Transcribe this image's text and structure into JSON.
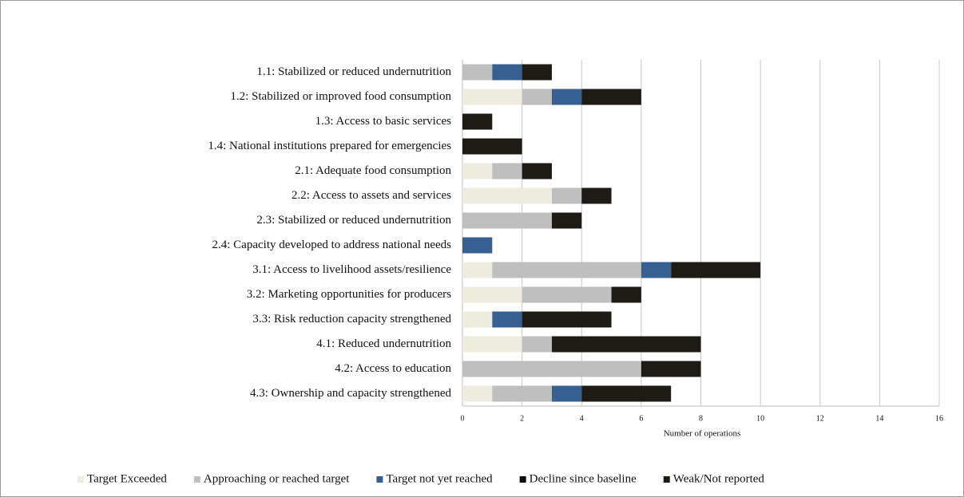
{
  "chart_data": {
    "type": "stacked_barh",
    "xlabel": "Number of operations",
    "categories": [
      "1.1: Stabilized or reduced undernutrition",
      "1.2: Stabilized or improved food consumption",
      "1.3: Access to basic services",
      "1.4: National institutions prepared for emergencies",
      "2.1: Adequate food consumption",
      "2.2: Access to assets and services",
      "2.3: Stabilized or reduced undernutrition",
      "2.4: Capacity developed to address national needs",
      "3.1: Access to livelihood assets/resilience",
      "3.2: Marketing opportunities for producers",
      "3.3: Risk reduction capacity strengthened",
      "4.1: Reduced undernutrition",
      "4.2: Access to education",
      "4.3: Ownership and capacity strengthened"
    ],
    "series": [
      {
        "name": "Target Exceeded",
        "color": "#eeebdf",
        "values": [
          0,
          2,
          0,
          0,
          1,
          3,
          0,
          0,
          1,
          2,
          1,
          2,
          0,
          1
        ]
      },
      {
        "name": "Approaching or reached target",
        "color": "#bfbfbf",
        "values": [
          1,
          1,
          0,
          0,
          1,
          1,
          3,
          0,
          5,
          3,
          0,
          1,
          6,
          2
        ]
      },
      {
        "name": "Target not yet reached",
        "color": "#376092",
        "values": [
          1,
          1,
          0,
          0,
          0,
          0,
          0,
          1,
          1,
          0,
          1,
          0,
          0,
          1
        ]
      },
      {
        "name": "Decline since baseline",
        "color": "#0d0d0d",
        "values": [
          0,
          0,
          0,
          0,
          0,
          0,
          0,
          0,
          0,
          0,
          0,
          0,
          0,
          0
        ]
      },
      {
        "name": "Weak/Not reported",
        "color": "#1d1b14",
        "values": [
          1,
          2,
          1,
          2,
          1,
          1,
          1,
          0,
          3,
          1,
          3,
          5,
          2,
          3
        ]
      }
    ],
    "xlim": [
      0,
      16
    ],
    "xticks": [
      0,
      2,
      4,
      6,
      8,
      10,
      12,
      14,
      16
    ],
    "grid": true,
    "legend": "bottom"
  }
}
